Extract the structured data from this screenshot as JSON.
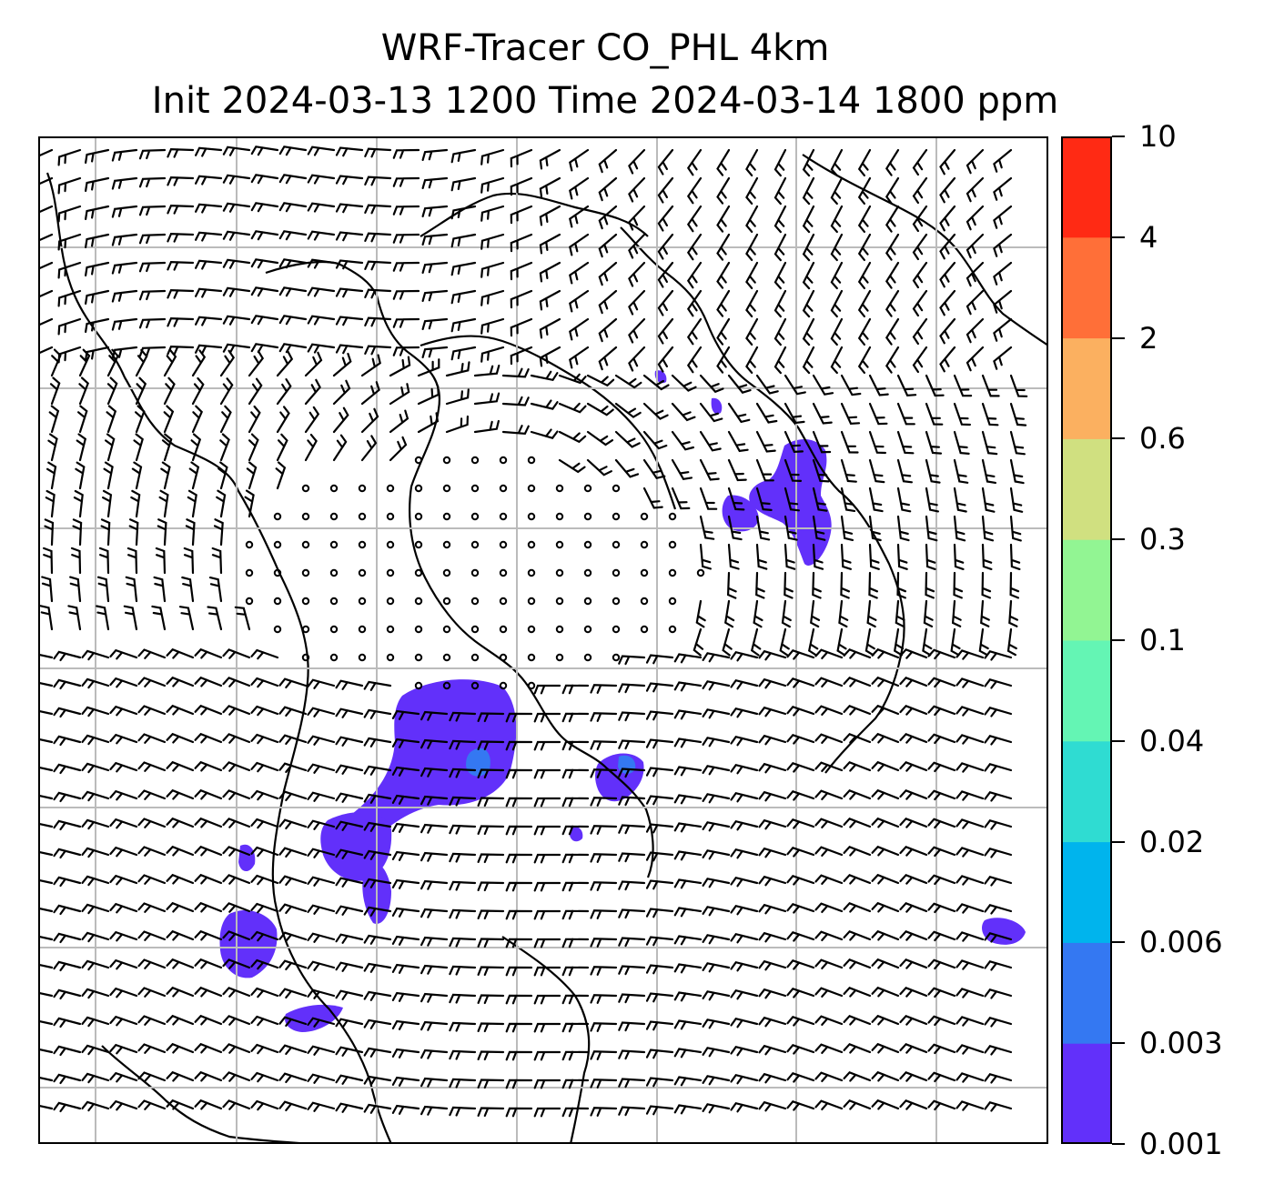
{
  "title": {
    "line1": "WRF-Tracer CO_PHL 4km",
    "line2": "Init 2024-03-13 1200 Time 2024-03-14 1800 ppm"
  },
  "colorbar": {
    "levels": [
      "0.001",
      "0.003",
      "0.006",
      "0.02",
      "0.04",
      "0.1",
      "0.3",
      "0.6",
      "2",
      "4",
      "10"
    ],
    "colors": [
      "#6230fa",
      "#3478f2",
      "#00b4ed",
      "#2fdcd2",
      "#64f5b4",
      "#92f593",
      "#d0e080",
      "#fbb060",
      "#ff6f38",
      "#ff2a14"
    ]
  },
  "map": {
    "plume_color": "#6230fa",
    "core_color": "#3478f2",
    "grid_color": "#bbbbbb",
    "feature_color": "#000000"
  }
}
